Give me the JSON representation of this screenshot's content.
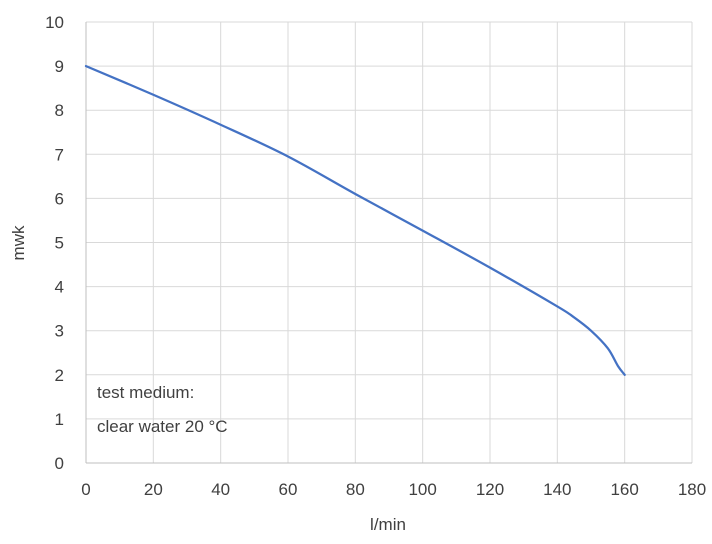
{
  "chart_data": {
    "type": "line",
    "xlabel": "l/min",
    "ylabel": "mwk",
    "xlim": [
      0,
      180
    ],
    "ylim": [
      0,
      10
    ],
    "x_ticks": [
      "0",
      "20",
      "40",
      "60",
      "80",
      "100",
      "120",
      "140",
      "160",
      "180"
    ],
    "y_ticks": [
      "0",
      "1",
      "2",
      "3",
      "4",
      "5",
      "6",
      "7",
      "8",
      "9",
      "10"
    ],
    "grid": true,
    "series": [
      {
        "color": "#4472c4",
        "x": [
          0,
          20,
          40,
          60,
          80,
          100,
          120,
          140,
          145,
          150,
          155,
          158,
          160
        ],
        "y": [
          9.0,
          8.35,
          7.67,
          6.95,
          6.1,
          5.27,
          4.43,
          3.55,
          3.3,
          3.0,
          2.6,
          2.2,
          2.0
        ]
      }
    ],
    "annotation": {
      "line1": "test medium:",
      "line2": "clear water 20 °C"
    },
    "grid_color": "#d9d9d9",
    "axis_color": "#bfbfbf"
  }
}
